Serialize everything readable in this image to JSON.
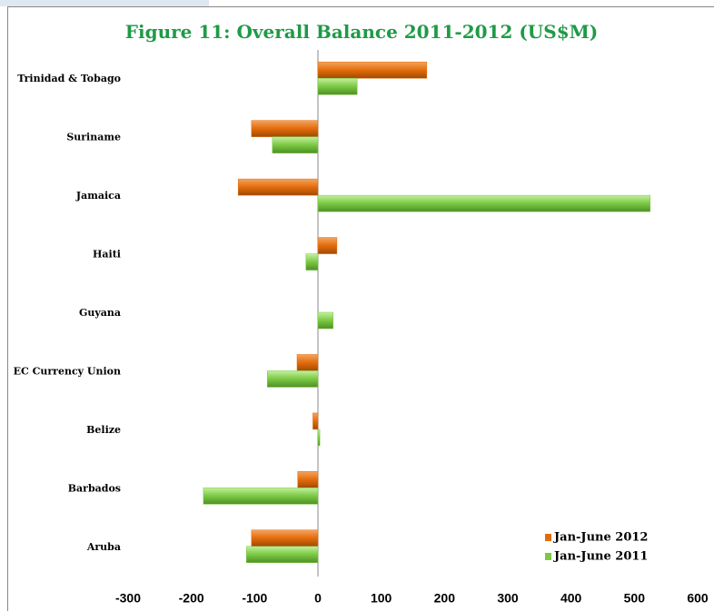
{
  "chart_data": {
    "type": "hbar",
    "title": "Figure 11: Overall Balance 2011-2012 (US$M)",
    "categories": [
      "Trinidad & Tobago",
      "Suriname",
      "Jamaica",
      "Haiti",
      "Guyana",
      "EC Currency Union",
      "Belize",
      "Barbados",
      "Aruba"
    ],
    "series": [
      {
        "name": "Jan-June 2012",
        "color": "#e36c0a",
        "values": [
          172,
          -105,
          -126,
          30,
          0,
          -33,
          -8,
          -32,
          -105
        ]
      },
      {
        "name": "Jan-June 2011",
        "color": "#7ac943",
        "values": [
          62,
          -72,
          525,
          -19,
          24,
          -80,
          3,
          -181,
          -113
        ]
      }
    ],
    "xlim": [
      -300,
      600
    ],
    "xticks": [
      -300,
      -200,
      -100,
      0,
      100,
      200,
      300,
      400,
      500,
      600
    ],
    "legend": "bottom-right"
  }
}
